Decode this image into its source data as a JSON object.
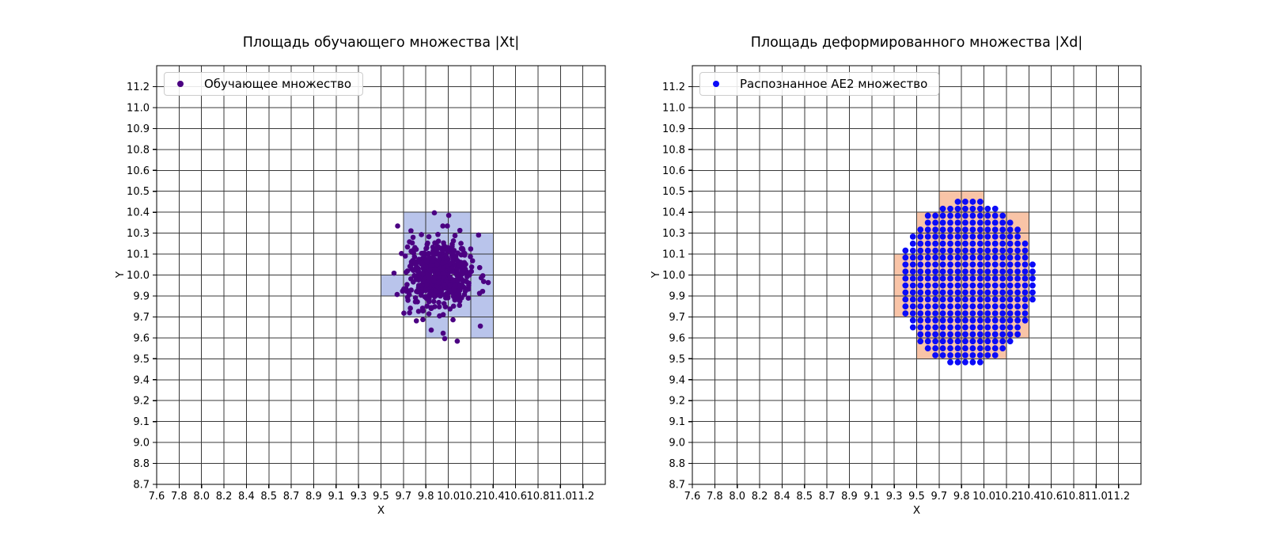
{
  "figure": {
    "background": "#ffffff"
  },
  "chart_data": [
    {
      "type": "scatter",
      "title": "Площадь обучающего множества |Xt|",
      "xlabel": "X",
      "ylabel": "Y",
      "grid": true,
      "x_cells": 20,
      "y_cells": 20,
      "x_tick_labels": [
        "7.6",
        "7.8",
        "8.0",
        "8.2",
        "8.4",
        "8.5",
        "8.7",
        "8.9",
        "9.1",
        "9.3",
        "9.5",
        "9.7",
        "9.8",
        "10.0",
        "10.2",
        "10.4",
        "10.6",
        "10.8",
        "11.0",
        "11.2"
      ],
      "y_tick_labels": [
        "8.7",
        "8.8",
        "9.0",
        "9.1",
        "9.2",
        "9.4",
        "9.5",
        "9.6",
        "9.7",
        "9.9",
        "10.0",
        "10.1",
        "10.3",
        "10.4",
        "10.5",
        "10.6",
        "10.8",
        "10.9",
        "11.0",
        "11.2"
      ],
      "legend": {
        "label": "Обучающее множество",
        "position": "upper-left"
      },
      "shaded_cells": {
        "fill": "#b9c4eb",
        "cell_indexing": "[col,row] interval index between consecutive ticks, 0 at lower-left",
        "cells": [
          [
            11,
            12
          ],
          [
            12,
            12
          ],
          [
            13,
            12
          ],
          [
            11,
            11
          ],
          [
            12,
            11
          ],
          [
            13,
            11
          ],
          [
            14,
            11
          ],
          [
            11,
            10
          ],
          [
            12,
            10
          ],
          [
            13,
            10
          ],
          [
            14,
            10
          ],
          [
            10,
            9
          ],
          [
            11,
            9
          ],
          [
            12,
            9
          ],
          [
            13,
            9
          ],
          [
            14,
            9
          ],
          [
            11,
            8
          ],
          [
            12,
            8
          ],
          [
            13,
            8
          ],
          [
            14,
            8
          ],
          [
            12,
            7
          ],
          [
            14,
            7
          ]
        ]
      },
      "series": [
        {
          "name": "Обучающее множество",
          "marker_color": "#4b0082",
          "marker_radius_px": 3.3,
          "distribution": "gaussian-cluster",
          "n_points": 540,
          "center_cell": [
            12.6,
            10.02
          ],
          "sigma_cell": [
            0.71,
            0.83
          ],
          "outlier_cells": [
            [
              10.72,
              9.07
            ],
            [
              11.15,
              9.22
            ],
            [
              12.77,
              7.22
            ],
            [
              12.84,
              6.96
            ],
            [
              13.4,
              6.84
            ],
            [
              12.24,
              7.37
            ],
            [
              14.43,
              7.56
            ],
            [
              14.78,
              9.64
            ],
            [
              14.53,
              9.22
            ],
            [
              14.35,
              11.91
            ],
            [
              13.02,
              12.85
            ],
            [
              12.38,
              12.97
            ],
            [
              10.58,
              10.09
            ],
            [
              11.43,
              11.8
            ]
          ]
        }
      ]
    },
    {
      "type": "scatter",
      "title": "Площадь деформированного множества |Xd|",
      "xlabel": "X",
      "ylabel": "Y",
      "grid": true,
      "x_cells": 20,
      "y_cells": 20,
      "x_tick_labels": [
        "7.6",
        "7.8",
        "8.0",
        "8.2",
        "8.4",
        "8.5",
        "8.7",
        "8.9",
        "9.1",
        "9.3",
        "9.5",
        "9.7",
        "9.8",
        "10.0",
        "10.2",
        "10.4",
        "10.6",
        "10.8",
        "11.0",
        "11.2"
      ],
      "y_tick_labels": [
        "8.7",
        "8.8",
        "9.0",
        "9.1",
        "9.2",
        "9.4",
        "9.5",
        "9.6",
        "9.7",
        "9.9",
        "10.0",
        "10.1",
        "10.3",
        "10.4",
        "10.5",
        "10.6",
        "10.8",
        "10.9",
        "11.0",
        "11.2"
      ],
      "legend": {
        "label": "Распознанное AE2 множество",
        "position": "upper-left"
      },
      "shaded_cells": {
        "fill": "#f9c4a7",
        "cell_indexing": "[col,row] interval index between consecutive ticks, 0 at lower-left",
        "cells": [
          [
            11,
            13
          ],
          [
            12,
            13
          ],
          [
            10,
            12
          ],
          [
            11,
            12
          ],
          [
            12,
            12
          ],
          [
            13,
            12
          ],
          [
            14,
            12
          ],
          [
            10,
            11
          ],
          [
            11,
            11
          ],
          [
            12,
            11
          ],
          [
            13,
            11
          ],
          [
            14,
            11
          ],
          [
            9,
            10
          ],
          [
            10,
            10
          ],
          [
            11,
            10
          ],
          [
            12,
            10
          ],
          [
            13,
            10
          ],
          [
            14,
            10
          ],
          [
            9,
            9
          ],
          [
            10,
            9
          ],
          [
            11,
            9
          ],
          [
            12,
            9
          ],
          [
            13,
            9
          ],
          [
            14,
            9
          ],
          [
            9,
            8
          ],
          [
            10,
            8
          ],
          [
            11,
            8
          ],
          [
            12,
            8
          ],
          [
            13,
            8
          ],
          [
            14,
            8
          ],
          [
            10,
            7
          ],
          [
            11,
            7
          ],
          [
            12,
            7
          ],
          [
            13,
            7
          ],
          [
            14,
            7
          ],
          [
            10,
            6
          ],
          [
            11,
            6
          ],
          [
            12,
            6
          ],
          [
            13,
            6
          ]
        ]
      },
      "series": [
        {
          "name": "Распознанное AE2 множество",
          "marker_color": "#0b0bf8",
          "marker_radius_px": 3.9,
          "distribution": "lattice-ellipse",
          "lattice_points_per_cell": 3,
          "ellipse_center_cell": [
            12.26,
            9.64
          ],
          "ellipse_radii_cell": [
            3.0,
            3.97
          ]
        }
      ]
    }
  ]
}
